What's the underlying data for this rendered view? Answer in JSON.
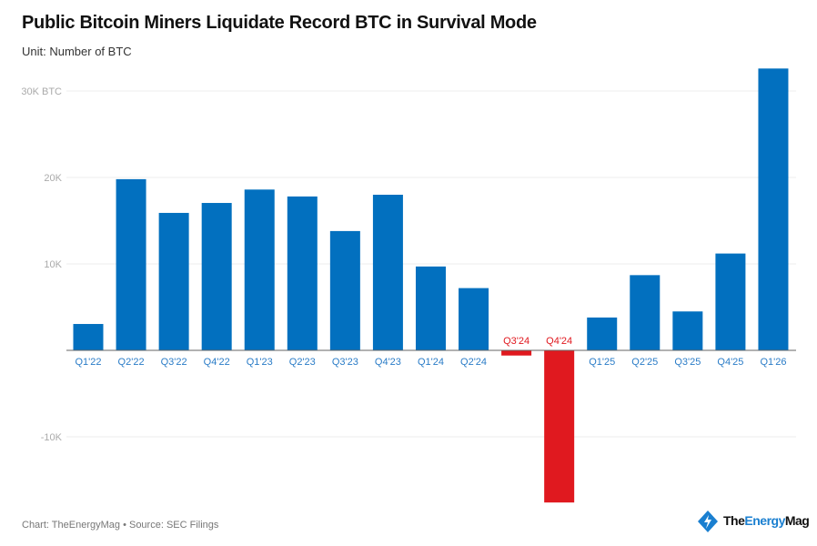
{
  "chart_data": {
    "type": "bar",
    "title": "Public Bitcoin Miners Liquidate Record BTC in Survival Mode",
    "subtitle": "Unit: Number of BTC",
    "categories": [
      "Q1'22",
      "Q2'22",
      "Q3'22",
      "Q4'22",
      "Q1'23",
      "Q2'23",
      "Q3'23",
      "Q4'23",
      "Q1'24",
      "Q2'24",
      "Q3'24",
      "Q4'24",
      "Q1'25",
      "Q2'25",
      "Q3'25",
      "Q4'25",
      "Q1'26"
    ],
    "values": [
      3050,
      19800,
      15900,
      17050,
      18600,
      17800,
      13800,
      18000,
      9700,
      7200,
      -600,
      -17600,
      3800,
      8700,
      4500,
      11200,
      32600
    ],
    "ylim": [
      -18000,
      33000
    ],
    "yticks": [
      -10000,
      0,
      10000,
      20000,
      30000
    ],
    "ytick_labels": [
      "-10K",
      "",
      "10K",
      "20K",
      "30K BTC"
    ],
    "grid": true,
    "colors": {
      "positive": "#0270bf",
      "negative": "#e0191f",
      "label_positive": "#2a7cc7",
      "label_negative": "#e0191f"
    }
  },
  "footer": "Chart: TheEnergyMag • Source: SEC Filings",
  "logo": {
    "part1": "The",
    "part2": "Energy",
    "part3": "Mag"
  }
}
